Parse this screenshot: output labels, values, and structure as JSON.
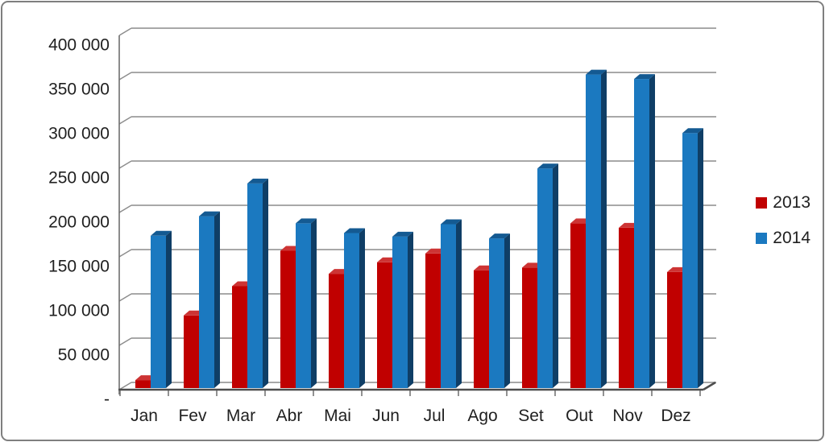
{
  "chart_data": {
    "type": "bar",
    "style": "3d-clustered-column",
    "title": "",
    "xlabel": "",
    "ylabel": "",
    "categories": [
      "Jan",
      "Fev",
      "Mar",
      "Abr",
      "Mai",
      "Jun",
      "Jul",
      "Ago",
      "Set",
      "Out",
      "Nov",
      "Dez"
    ],
    "series": [
      {
        "name": "2013",
        "color": "#c00000",
        "top_color": "#cd3434",
        "side_color": "#7c0a0a",
        "values": [
          9000,
          82000,
          115000,
          155000,
          129000,
          142000,
          152000,
          133000,
          136000,
          186000,
          181000,
          131000
        ]
      },
      {
        "name": "2014",
        "color": "#1b79c0",
        "top_color": "#145a92",
        "side_color": "#0f3e66",
        "values": [
          172000,
          194000,
          231000,
          186000,
          175000,
          171000,
          185000,
          169000,
          248000,
          354000,
          349000,
          288000
        ]
      }
    ],
    "ylim": [
      0,
      400000
    ],
    "y_tick_step": 50000,
    "y_tick_labels": [
      "-",
      "50 000",
      "100 000",
      "150 000",
      "200 000",
      "250 000",
      "300 000",
      "350 000",
      "400 000"
    ],
    "grid": true,
    "legend_position": "right",
    "colors": {
      "gridline": "#8c8c8c",
      "axis_line": "#6e6e6e",
      "baseline": "#4d4d4d",
      "text": "#1f1f1f",
      "frame_border": "#7f7f7f"
    }
  },
  "legend": {
    "items": [
      {
        "label": "2013"
      },
      {
        "label": "2014"
      }
    ]
  }
}
